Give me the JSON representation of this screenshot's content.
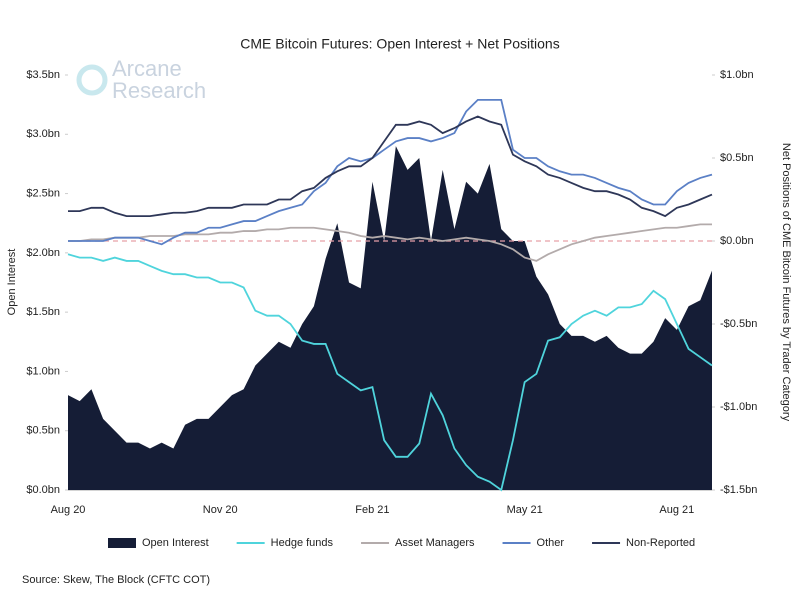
{
  "chart_data": {
    "type": "line",
    "title": "CME Bitcoin Futures: Open Interest + Net Positions",
    "watermark": [
      "Arcane",
      "Research"
    ],
    "ylabel": "Open Interest",
    "y2label": "Net Positions of CME Bitcoin Futures by Trader Category",
    "source": "Source: Skew, The Block (CFTC COT)",
    "categories": [
      "Aug 20",
      null,
      null,
      null,
      null,
      null,
      null,
      null,
      null,
      null,
      null,
      null,
      null,
      "Nov 20",
      null,
      null,
      null,
      null,
      null,
      null,
      null,
      null,
      null,
      null,
      null,
      null,
      "Feb 21",
      null,
      null,
      null,
      null,
      null,
      null,
      null,
      null,
      null,
      null,
      null,
      null,
      "May 21",
      null,
      null,
      null,
      null,
      null,
      null,
      null,
      null,
      null,
      null,
      null,
      null,
      "Aug 21",
      null,
      null,
      null
    ],
    "ylim": [
      0,
      3.5
    ],
    "yticks": [
      {
        "value": 0,
        "label": "$0.0bn"
      },
      {
        "value": 0.5,
        "label": "$0.5bn"
      },
      {
        "value": 1,
        "label": "$1.0bn"
      },
      {
        "value": 1.5,
        "label": "$1.5bn"
      },
      {
        "value": 2,
        "label": "$2.0bn"
      },
      {
        "value": 2.5,
        "label": "$2.5bn"
      },
      {
        "value": 3,
        "label": "$3.0bn"
      },
      {
        "value": 3.5,
        "label": "$3.5bn"
      }
    ],
    "y2lim": [
      -1.5,
      1
    ],
    "y2ticks": [
      {
        "value": -1.5,
        "label": "-$1.5bn"
      },
      {
        "value": -1,
        "label": "-$1.0bn"
      },
      {
        "value": -0.5,
        "label": "-$0.5bn"
      },
      {
        "value": 0,
        "label": "$0.0bn"
      },
      {
        "value": 0.5,
        "label": "$0.5bn"
      },
      {
        "value": 1,
        "label": "$1.0bn"
      }
    ],
    "y2_refline": 0,
    "refline_color": "#e8a0a8",
    "series": [
      {
        "name": "Open Interest",
        "style": "area",
        "axis": "y",
        "color": "#151d36",
        "values": [
          0.8,
          0.75,
          0.85,
          0.6,
          0.5,
          0.4,
          0.4,
          0.35,
          0.4,
          0.35,
          0.55,
          0.6,
          0.6,
          0.7,
          0.8,
          0.85,
          1.05,
          1.15,
          1.25,
          1.2,
          1.4,
          1.55,
          1.95,
          2.25,
          1.75,
          1.7,
          2.6,
          2.1,
          2.9,
          2.7,
          2.8,
          2.1,
          2.7,
          2.2,
          2.6,
          2.5,
          2.75,
          2.2,
          2.1,
          2.1,
          1.8,
          1.65,
          1.4,
          1.3,
          1.3,
          1.25,
          1.3,
          1.2,
          1.15,
          1.15,
          1.25,
          1.45,
          1.35,
          1.55,
          1.6,
          1.85
        ]
      },
      {
        "name": "Hedge funds",
        "style": "line",
        "axis": "y2",
        "color": "#4fd4dc",
        "values": [
          -0.08,
          -0.1,
          -0.1,
          -0.12,
          -0.1,
          -0.12,
          -0.12,
          -0.15,
          -0.18,
          -0.2,
          -0.2,
          -0.22,
          -0.22,
          -0.25,
          -0.25,
          -0.28,
          -0.42,
          -0.45,
          -0.45,
          -0.5,
          -0.6,
          -0.62,
          -0.62,
          -0.8,
          -0.85,
          -0.9,
          -0.88,
          -1.2,
          -1.3,
          -1.3,
          -1.22,
          -0.92,
          -1.05,
          -1.25,
          -1.35,
          -1.42,
          -1.45,
          -1.5,
          -1.2,
          -0.85,
          -0.8,
          -0.6,
          -0.58,
          -0.5,
          -0.45,
          -0.42,
          -0.45,
          -0.4,
          -0.4,
          -0.38,
          -0.3,
          -0.35,
          -0.5,
          -0.65,
          -0.7,
          -0.75
        ]
      },
      {
        "name": "Asset Managers",
        "style": "line",
        "axis": "y2",
        "color": "#b3abab",
        "values": [
          0,
          0,
          0.01,
          0.01,
          0.02,
          0.02,
          0.02,
          0.03,
          0.03,
          0.03,
          0.04,
          0.04,
          0.04,
          0.05,
          0.05,
          0.06,
          0.06,
          0.07,
          0.07,
          0.08,
          0.08,
          0.08,
          0.07,
          0.06,
          0.05,
          0.03,
          0.02,
          0.03,
          0.02,
          0.01,
          0.02,
          0.01,
          0,
          0.01,
          0.02,
          0.01,
          0,
          -0.02,
          -0.05,
          -0.1,
          -0.12,
          -0.08,
          -0.05,
          -0.02,
          0,
          0.02,
          0.03,
          0.04,
          0.05,
          0.06,
          0.07,
          0.08,
          0.08,
          0.09,
          0.1,
          0.1
        ]
      },
      {
        "name": "Other",
        "style": "line",
        "axis": "y2",
        "color": "#5b80c6",
        "values": [
          0,
          0,
          0,
          0,
          0.02,
          0.02,
          0.02,
          0,
          -0.02,
          0.02,
          0.05,
          0.05,
          0.08,
          0.08,
          0.1,
          0.12,
          0.12,
          0.15,
          0.18,
          0.2,
          0.22,
          0.3,
          0.35,
          0.45,
          0.5,
          0.48,
          0.5,
          0.55,
          0.6,
          0.62,
          0.62,
          0.6,
          0.62,
          0.65,
          0.78,
          0.85,
          0.85,
          0.85,
          0.55,
          0.5,
          0.5,
          0.45,
          0.42,
          0.4,
          0.4,
          0.38,
          0.35,
          0.32,
          0.3,
          0.25,
          0.22,
          0.22,
          0.3,
          0.35,
          0.38,
          0.4
        ]
      },
      {
        "name": "Non-Reported",
        "style": "line",
        "axis": "y2",
        "color": "#2e3758",
        "values": [
          0.18,
          0.18,
          0.2,
          0.2,
          0.17,
          0.15,
          0.15,
          0.15,
          0.16,
          0.17,
          0.17,
          0.18,
          0.2,
          0.2,
          0.2,
          0.22,
          0.22,
          0.22,
          0.25,
          0.25,
          0.3,
          0.32,
          0.38,
          0.42,
          0.45,
          0.45,
          0.5,
          0.6,
          0.7,
          0.7,
          0.72,
          0.7,
          0.65,
          0.68,
          0.72,
          0.75,
          0.72,
          0.7,
          0.52,
          0.48,
          0.45,
          0.4,
          0.38,
          0.35,
          0.32,
          0.3,
          0.3,
          0.28,
          0.25,
          0.2,
          0.18,
          0.15,
          0.2,
          0.22,
          0.25,
          0.28
        ]
      }
    ]
  }
}
